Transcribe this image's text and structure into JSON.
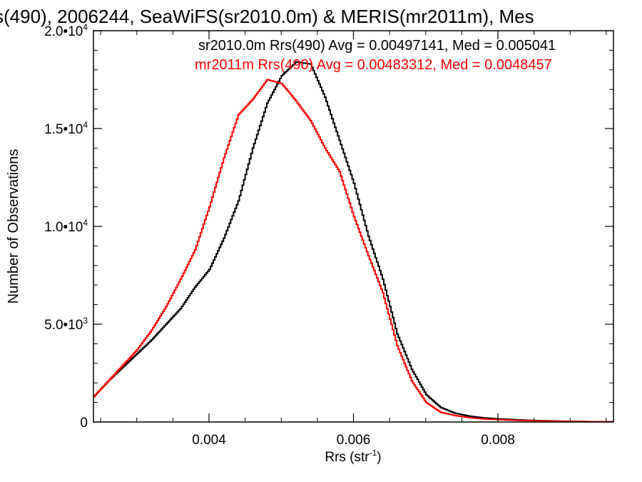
{
  "chart_data": {
    "type": "line",
    "title": "s(490), 2006244, SeaWiFS(sr2010.0m) & MERIS(mr2011m), Mes",
    "xlabel": "Rrs (str",
    "xlabel_sup": "-1",
    "xlabel_close": ")",
    "ylabel": "Number of Observations",
    "xlim": [
      0.0024,
      0.0096
    ],
    "ylim": [
      0,
      20000
    ],
    "grid": false,
    "x_ticks": [
      {
        "value": 0.004,
        "label": "0.004"
      },
      {
        "value": 0.006,
        "label": "0.006"
      },
      {
        "value": 0.008,
        "label": "0.008"
      }
    ],
    "y_ticks": [
      {
        "value": 0,
        "mant": "0",
        "exp": ""
      },
      {
        "value": 5000,
        "mant": "5.0•10",
        "exp": "3"
      },
      {
        "value": 10000,
        "mant": "1.0•10",
        "exp": "4"
      },
      {
        "value": 15000,
        "mant": "1.5•10",
        "exp": "4"
      },
      {
        "value": 20000,
        "mant": "2.0•10",
        "exp": "4"
      }
    ],
    "annotations": [
      {
        "text": "sr2010.0m Rrs(490) Avg = 0.00497141, Med = 0.005041",
        "color": "#000000"
      },
      {
        "text": "mr2011m Rrs(490) Avg = 0.00483312, Med = 0.0048457",
        "color": "#ff0000"
      }
    ],
    "series": [
      {
        "color": "#000000",
        "points": [
          [
            0.0024,
            1300
          ],
          [
            0.0026,
            2100
          ],
          [
            0.0028,
            2800
          ],
          [
            0.003,
            3500
          ],
          [
            0.0032,
            4200
          ],
          [
            0.0034,
            5000
          ],
          [
            0.0036,
            5800
          ],
          [
            0.0038,
            6900
          ],
          [
            0.004,
            7800
          ],
          [
            0.0042,
            9400
          ],
          [
            0.0044,
            11300
          ],
          [
            0.0046,
            14000
          ],
          [
            0.0048,
            16300
          ],
          [
            0.005,
            17700
          ],
          [
            0.0052,
            18400
          ],
          [
            0.0054,
            18300
          ],
          [
            0.0056,
            16600
          ],
          [
            0.0058,
            14400
          ],
          [
            0.006,
            12200
          ],
          [
            0.0062,
            9500
          ],
          [
            0.0064,
            7300
          ],
          [
            0.0066,
            4500
          ],
          [
            0.0068,
            2700
          ],
          [
            0.007,
            1400
          ],
          [
            0.0072,
            750
          ],
          [
            0.0074,
            450
          ],
          [
            0.0076,
            300
          ],
          [
            0.0078,
            210
          ],
          [
            0.008,
            160
          ],
          [
            0.0084,
            90
          ],
          [
            0.0088,
            50
          ],
          [
            0.0092,
            25
          ],
          [
            0.0096,
            10
          ]
        ]
      },
      {
        "color": "#ff0000",
        "points": [
          [
            0.0024,
            1300
          ],
          [
            0.0026,
            2100
          ],
          [
            0.0028,
            2900
          ],
          [
            0.003,
            3700
          ],
          [
            0.0032,
            4700
          ],
          [
            0.0034,
            5900
          ],
          [
            0.0036,
            7300
          ],
          [
            0.0038,
            8800
          ],
          [
            0.004,
            11000
          ],
          [
            0.0042,
            13500
          ],
          [
            0.0044,
            15700
          ],
          [
            0.0046,
            16500
          ],
          [
            0.0048,
            17500
          ],
          [
            0.005,
            17300
          ],
          [
            0.0052,
            16400
          ],
          [
            0.0054,
            15400
          ],
          [
            0.0056,
            14000
          ],
          [
            0.0058,
            12800
          ],
          [
            0.006,
            10500
          ],
          [
            0.0062,
            8500
          ],
          [
            0.0064,
            6600
          ],
          [
            0.0066,
            3900
          ],
          [
            0.0068,
            2100
          ],
          [
            0.007,
            1000
          ],
          [
            0.0072,
            500
          ],
          [
            0.0074,
            330
          ],
          [
            0.0076,
            220
          ],
          [
            0.0078,
            160
          ],
          [
            0.008,
            120
          ],
          [
            0.0084,
            70
          ],
          [
            0.0088,
            40
          ],
          [
            0.0092,
            20
          ],
          [
            0.0096,
            8
          ]
        ]
      }
    ]
  }
}
